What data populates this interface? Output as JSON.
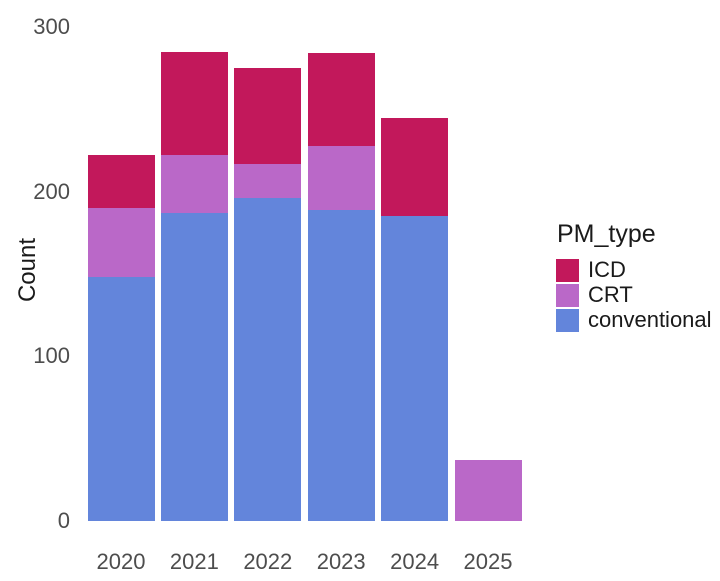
{
  "figure": {
    "background": "#ffffff"
  },
  "chart_data": {
    "type": "bar",
    "stacked": true,
    "title": "",
    "xlabel": "",
    "ylabel": "Count",
    "ylim": [
      0,
      300
    ],
    "yticks": [
      0,
      100,
      200,
      300
    ],
    "grid": false,
    "legend_position": "right",
    "legend_title": "PM_type",
    "categories": [
      "2020",
      "2021",
      "2022",
      "2023",
      "2024",
      "2025"
    ],
    "series": [
      {
        "name": "conventional",
        "color": "#6385DB",
        "values": [
          148,
          187,
          196,
          189,
          185,
          0
        ]
      },
      {
        "name": "CRT",
        "color": "#BA68C8",
        "values": [
          42,
          35,
          21,
          39,
          0,
          37
        ]
      },
      {
        "name": "ICD",
        "color": "#C2185B",
        "values": [
          32,
          63,
          58,
          56,
          60,
          0
        ]
      }
    ],
    "totals": [
      222,
      285,
      275,
      284,
      245,
      37
    ],
    "legend_order": [
      "ICD",
      "CRT",
      "conventional"
    ]
  },
  "colors": {
    "axis_text": "#4d4d4d",
    "title_text": "#1a1a1a",
    "icd": "#C2185B",
    "crt": "#BA68C8",
    "conventional": "#6385DB"
  }
}
